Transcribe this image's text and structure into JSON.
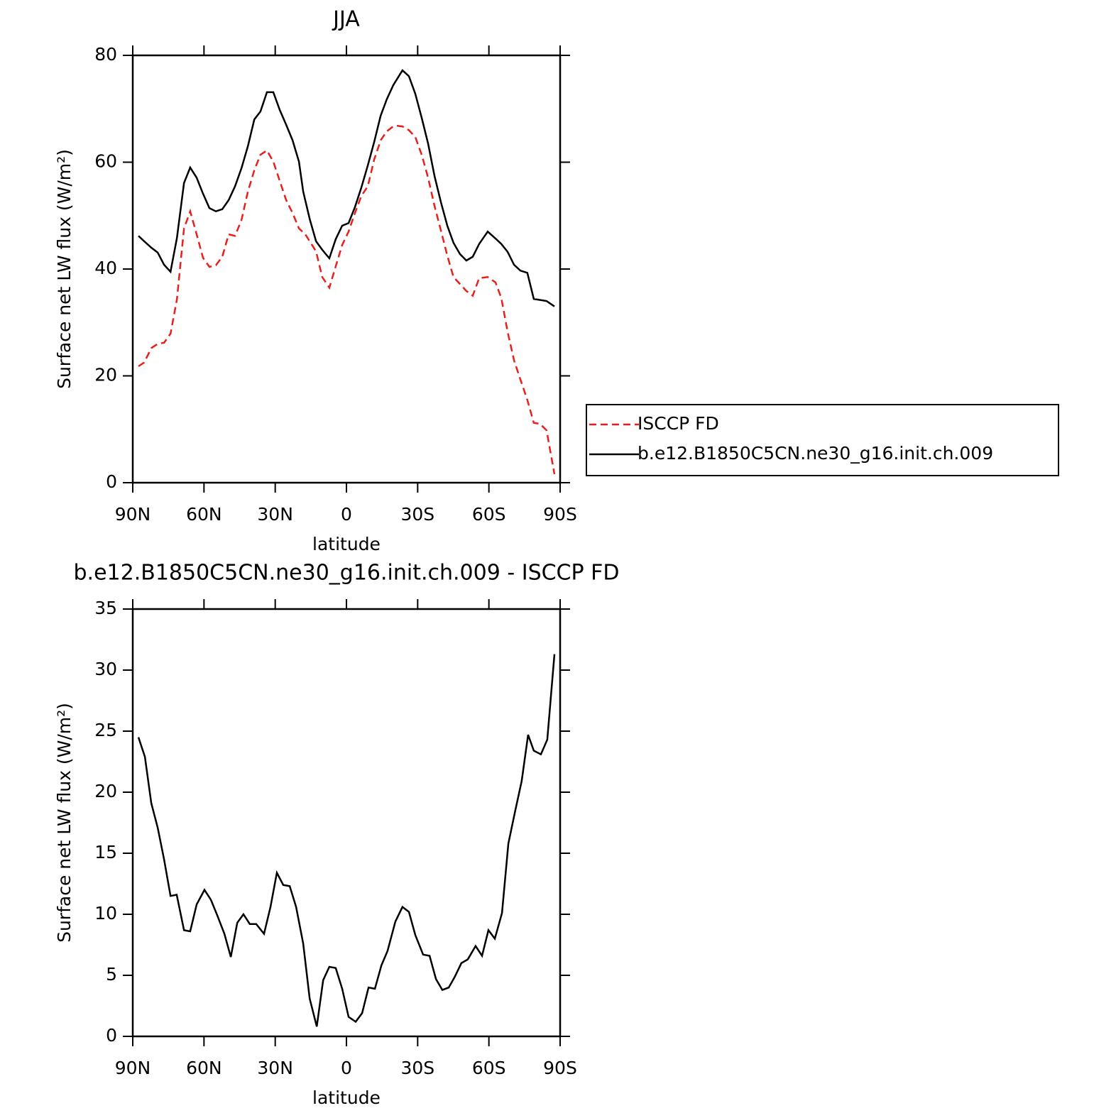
{
  "chart_data": [
    {
      "type": "line",
      "title": "JJA",
      "x_label": "latitude",
      "y_label": "Surface net LW flux (W/m²)",
      "xlim": [
        90,
        -90
      ],
      "xticks": [
        {
          "value": 90,
          "label": "90N"
        },
        {
          "value": 60,
          "label": "60N"
        },
        {
          "value": 30,
          "label": "30N"
        },
        0,
        {
          "value": -30,
          "label": "30S"
        },
        {
          "value": -60,
          "label": "60S"
        },
        {
          "value": -90,
          "label": "90S"
        }
      ],
      "ylim": [
        0,
        80
      ],
      "yticks": [
        0,
        20,
        40,
        60,
        80
      ],
      "legend": "right",
      "series": [
        {
          "name": "ISCCP FD",
          "color": "#e8201c",
          "line_style": "dashed",
          "x": [
            87.6,
            85.2,
            82.2,
            79.5,
            76.8,
            74.1,
            71.4,
            68.4,
            65.8,
            63.1,
            60.4,
            57.7,
            55.0,
            52.3,
            49.6,
            46.9,
            44.2,
            41.5,
            38.8,
            36.2,
            33.5,
            30.8,
            28.1,
            25.4,
            22.7,
            20.0,
            17.3,
            15.5,
            12.8,
            10.2,
            7.2,
            4.5,
            1.8,
            -0.9,
            -3.6,
            -6.3,
            -9.0,
            -11.7,
            -14.4,
            -17.0,
            -19.7,
            -21.5,
            -23.6,
            -26.3,
            -29.0,
            -31.7,
            -34.4,
            -37.1,
            -39.8,
            -42.5,
            -45.1,
            -47.8,
            -50.5,
            -53.2,
            -55.9,
            -59.5,
            -62.8,
            -65.2,
            -67.9,
            -70.6,
            -73.3,
            -76.2,
            -78.9,
            -81.6,
            -84.3,
            -87.6
          ],
          "values": [
            21.8,
            22.5,
            25.2,
            26.0,
            26.2,
            27.9,
            34.3,
            47.6,
            50.8,
            46.5,
            42.1,
            40.4,
            40.7,
            42.3,
            46.5,
            46.2,
            49.2,
            54.5,
            58.5,
            61.4,
            62.2,
            60.1,
            56.5,
            52.9,
            50.5,
            47.6,
            46.5,
            45.2,
            43.3,
            38.5,
            36.5,
            40.5,
            44.5,
            47.0,
            50.5,
            53.7,
            55.5,
            60.5,
            64.1,
            65.8,
            66.7,
            66.8,
            66.7,
            66.0,
            64.7,
            61.4,
            57.1,
            51.8,
            47.2,
            42.5,
            38.5,
            37.2,
            35.9,
            35.0,
            38.3,
            38.5,
            37.5,
            34.6,
            28.2,
            22.9,
            19.3,
            15.5,
            11.2,
            11.0,
            9.8,
            1.6
          ]
        },
        {
          "name": "b.e12.B1850C5CN.ne30_g16.init.ch.009",
          "color": "#000000",
          "line_style": "solid",
          "x": [
            87.6,
            85.2,
            82.2,
            79.5,
            76.8,
            74.1,
            71.4,
            68.4,
            65.8,
            63.1,
            60.4,
            57.7,
            55.0,
            52.3,
            49.6,
            46.9,
            44.2,
            41.5,
            38.8,
            36.2,
            33.5,
            30.8,
            28.1,
            25.4,
            22.7,
            20.0,
            18.2,
            15.5,
            12.8,
            10.2,
            7.2,
            4.5,
            1.8,
            -0.9,
            -3.6,
            -6.3,
            -9.0,
            -11.7,
            -14.4,
            -17.0,
            -19.7,
            -21.5,
            -23.6,
            -26.3,
            -29.0,
            -31.7,
            -34.4,
            -37.1,
            -39.8,
            -42.5,
            -45.1,
            -47.8,
            -50.5,
            -53.2,
            -55.9,
            -59.5,
            -62.8,
            -65.2,
            -67.9,
            -70.6,
            -73.3,
            -76.2,
            -78.9,
            -81.6,
            -84.3,
            -87.6
          ],
          "values": [
            46.2,
            45.2,
            44.0,
            43.1,
            40.8,
            39.5,
            45.8,
            56.1,
            59.0,
            57.1,
            54.1,
            51.4,
            50.8,
            51.2,
            52.9,
            55.5,
            58.9,
            63.0,
            68.0,
            69.5,
            73.1,
            73.1,
            69.8,
            67.0,
            64.1,
            60.1,
            54.5,
            49.4,
            45.2,
            43.6,
            42.0,
            45.6,
            48.1,
            48.6,
            51.6,
            55.3,
            59.4,
            63.8,
            68.7,
            71.8,
            74.4,
            75.7,
            77.2,
            76.1,
            72.8,
            68.3,
            63.5,
            57.4,
            52.5,
            48.1,
            44.9,
            42.8,
            41.6,
            42.3,
            44.7,
            47.0,
            45.7,
            44.7,
            43.2,
            40.8,
            39.7,
            39.3,
            34.4,
            34.2,
            34.0,
            33.0
          ]
        }
      ]
    },
    {
      "type": "line",
      "title": "b.e12.B1850C5CN.ne30_g16.init.ch.009 - ISCCP FD",
      "x_label": "latitude",
      "y_label": "Surface net LW flux (W/m²)",
      "xlim": [
        90,
        -90
      ],
      "xticks": [
        {
          "value": 90,
          "label": "90N"
        },
        {
          "value": 60,
          "label": "60N"
        },
        {
          "value": 30,
          "label": "30N"
        },
        0,
        {
          "value": -30,
          "label": "30S"
        },
        {
          "value": -60,
          "label": "60S"
        },
        {
          "value": -90,
          "label": "90S"
        }
      ],
      "ylim": [
        0,
        35
      ],
      "yticks": [
        0,
        5,
        10,
        15,
        20,
        25,
        30,
        35
      ],
      "series": [
        {
          "color": "#000000",
          "line_style": "solid",
          "x": [
            87.6,
            84.9,
            82.2,
            79.5,
            76.8,
            74.1,
            71.5,
            68.4,
            65.8,
            63.1,
            59.8,
            57.1,
            54.4,
            51.4,
            48.7,
            46.0,
            43.4,
            40.7,
            38.0,
            34.7,
            32.0,
            29.3,
            26.6,
            23.9,
            21.2,
            18.2,
            15.5,
            12.5,
            9.8,
            7.2,
            4.5,
            1.8,
            -0.9,
            -3.9,
            -6.6,
            -9.3,
            -12.0,
            -14.7,
            -17.3,
            -20.6,
            -23.6,
            -26.3,
            -29.0,
            -32.3,
            -35.0,
            -37.7,
            -40.4,
            -43.1,
            -45.7,
            -48.4,
            -51.1,
            -54.4,
            -57.1,
            -59.8,
            -62.5,
            -65.5,
            -68.2,
            -70.9,
            -73.8,
            -76.5,
            -78.9,
            -81.9,
            -84.6,
            -87.6
          ],
          "values": [
            24.5,
            22.9,
            19.1,
            17.1,
            14.5,
            11.5,
            11.6,
            8.7,
            8.6,
            10.8,
            12.0,
            11.2,
            9.9,
            8.4,
            6.5,
            9.3,
            10.0,
            9.2,
            9.2,
            8.4,
            10.6,
            13.4,
            12.4,
            12.3,
            10.6,
            7.6,
            3.1,
            0.8,
            4.6,
            5.7,
            5.6,
            3.9,
            1.6,
            1.2,
            1.9,
            4.0,
            3.9,
            5.8,
            7.0,
            9.4,
            10.6,
            10.2,
            8.3,
            6.7,
            6.6,
            4.7,
            3.8,
            4.0,
            4.9,
            6.0,
            6.3,
            7.4,
            6.6,
            8.7,
            8.0,
            10.1,
            15.8,
            18.3,
            20.9,
            24.7,
            23.4,
            23.1,
            24.3,
            31.3
          ]
        }
      ]
    }
  ]
}
